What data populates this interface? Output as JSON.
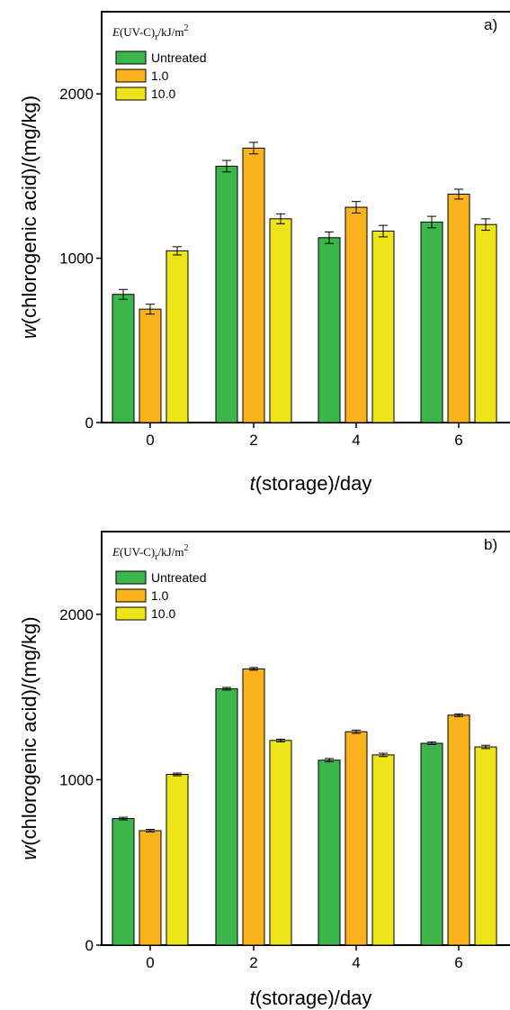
{
  "chart_data": [
    {
      "type": "bar",
      "panel_label": "a)",
      "categories": [
        "0",
        "2",
        "4",
        "6"
      ],
      "xlabel": {
        "italic": "t",
        "rest": "(storage)/day"
      },
      "ylabel": {
        "italic": "w",
        "rest": "(chlorogenic acid)/(mg/kg)"
      },
      "ylim": [
        0,
        2500
      ],
      "yticks": [
        "0",
        "1000",
        "2000"
      ],
      "ytick_values": [
        0,
        1000,
        2000
      ],
      "legend": {
        "title": {
          "symbol": "E",
          "main": "(UV-C)",
          "sub": "r",
          "unit": "/kJ/m",
          "sup": "2"
        },
        "placement": "top-left"
      },
      "series": [
        {
          "name": "Untreated",
          "color": "#3cb54a",
          "values": [
            780,
            1560,
            1125,
            1220
          ],
          "errors": [
            30,
            35,
            35,
            35
          ]
        },
        {
          "name": "1.0",
          "color": "#fbb31d",
          "values": [
            690,
            1670,
            1310,
            1390
          ],
          "errors": [
            30,
            35,
            35,
            30
          ]
        },
        {
          "name": "10.0",
          "color": "#ede41a",
          "values": [
            1045,
            1240,
            1165,
            1205
          ],
          "errors": [
            25,
            30,
            35,
            35
          ]
        }
      ]
    },
    {
      "type": "bar",
      "panel_label": "b)",
      "categories": [
        "0",
        "2",
        "4",
        "6"
      ],
      "xlabel": {
        "italic": "t",
        "rest": "(storage)/day"
      },
      "ylabel": {
        "italic": "w",
        "rest": "(chlorogenic acid)/(mg/kg)"
      },
      "ylim": [
        0,
        2500
      ],
      "yticks": [
        "0",
        "1000",
        "2000"
      ],
      "ytick_values": [
        0,
        1000,
        2000
      ],
      "legend": {
        "title": {
          "symbol": "E",
          "main": "(UV-C)",
          "sub": "r",
          "unit": "/kJ/m",
          "sup": "2"
        },
        "placement": "top-left"
      },
      "series": [
        {
          "name": "Untreated",
          "color": "#3cb54a",
          "values": [
            765,
            1550,
            1118,
            1220
          ],
          "errors": [
            8,
            8,
            10,
            8
          ]
        },
        {
          "name": "1.0",
          "color": "#fbb31d",
          "values": [
            692,
            1670,
            1290,
            1390
          ],
          "errors": [
            8,
            8,
            10,
            8
          ]
        },
        {
          "name": "10.0",
          "color": "#ede41a",
          "values": [
            1032,
            1237,
            1150,
            1198
          ],
          "errors": [
            8,
            8,
            10,
            10
          ]
        }
      ]
    }
  ]
}
